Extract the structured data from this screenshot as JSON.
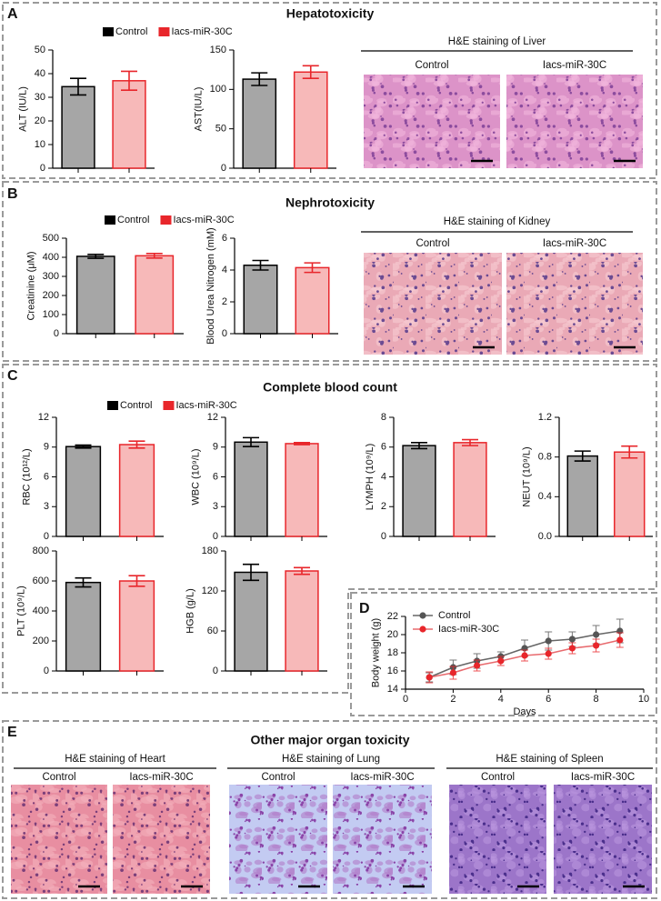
{
  "chart_data": [
    {
      "type": "bar",
      "ylabel": "ALT (IU/L)",
      "categories": [
        null,
        null
      ],
      "values": [
        34.5,
        37
      ],
      "errors": [
        3.5,
        4
      ],
      "colors": [
        "#a6a6a6",
        "#f7b9b9"
      ],
      "edge_colors": [
        "#000000",
        "#e8262b"
      ],
      "ylim": [
        0,
        50
      ],
      "yticks": [
        0,
        10,
        20,
        30,
        40,
        50
      ]
    },
    {
      "type": "bar",
      "ylabel": "AST(IU/L)",
      "categories": [
        null,
        null
      ],
      "values": [
        113,
        122
      ],
      "errors": [
        8,
        8
      ],
      "colors": [
        "#a6a6a6",
        "#f7b9b9"
      ],
      "edge_colors": [
        "#000000",
        "#e8262b"
      ],
      "ylim": [
        0,
        150
      ],
      "yticks": [
        0,
        50,
        100,
        150
      ]
    },
    {
      "type": "bar",
      "ylabel": "Creatinine (μM)",
      "categories": [
        null,
        null
      ],
      "values": [
        405,
        408
      ],
      "errors": [
        10,
        12
      ],
      "colors": [
        "#a6a6a6",
        "#f7b9b9"
      ],
      "edge_colors": [
        "#000000",
        "#e8262b"
      ],
      "ylim": [
        0,
        500
      ],
      "yticks": [
        0,
        100,
        200,
        300,
        400,
        500
      ]
    },
    {
      "type": "bar",
      "ylabel": "Blood Urea Nitrogen (mM)",
      "categories": [
        null,
        null
      ],
      "values": [
        4.3,
        4.15
      ],
      "errors": [
        0.3,
        0.3
      ],
      "colors": [
        "#a6a6a6",
        "#f7b9b9"
      ],
      "edge_colors": [
        "#000000",
        "#e8262b"
      ],
      "ylim": [
        0,
        6
      ],
      "yticks": [
        0,
        2,
        4,
        6
      ]
    },
    {
      "type": "bar",
      "ylabel": "RBC (10¹²/L)",
      "categories": [
        null,
        null
      ],
      "values": [
        9.05,
        9.25
      ],
      "errors": [
        0.15,
        0.35
      ],
      "colors": [
        "#a6a6a6",
        "#f7b9b9"
      ],
      "edge_colors": [
        "#000000",
        "#e8262b"
      ],
      "ylim": [
        0,
        12
      ],
      "yticks": [
        0,
        3,
        6,
        9,
        12
      ]
    },
    {
      "type": "bar",
      "ylabel": "WBC (10⁹/L)",
      "categories": [
        null,
        null
      ],
      "values": [
        9.5,
        9.35
      ],
      "errors": [
        0.45,
        0.1
      ],
      "colors": [
        "#a6a6a6",
        "#f7b9b9"
      ],
      "edge_colors": [
        "#000000",
        "#e8262b"
      ],
      "ylim": [
        0,
        12
      ],
      "yticks": [
        0,
        3,
        6,
        9,
        12
      ]
    },
    {
      "type": "bar",
      "ylabel": "LYMPH (10⁹/L)",
      "categories": [
        null,
        null
      ],
      "values": [
        6.1,
        6.3
      ],
      "errors": [
        0.2,
        0.2
      ],
      "colors": [
        "#a6a6a6",
        "#f7b9b9"
      ],
      "edge_colors": [
        "#000000",
        "#e8262b"
      ],
      "ylim": [
        0,
        8
      ],
      "yticks": [
        0,
        2,
        4,
        6,
        8
      ]
    },
    {
      "type": "bar",
      "ylabel": "NEUT (10⁹/L)",
      "categories": [
        null,
        null
      ],
      "values": [
        0.81,
        0.85
      ],
      "errors": [
        0.05,
        0.06
      ],
      "colors": [
        "#a6a6a6",
        "#f7b9b9"
      ],
      "edge_colors": [
        "#000000",
        "#e8262b"
      ],
      "ylim": [
        0,
        1.2
      ],
      "yticks": [
        {
          "value": 0,
          "label": "0.0"
        },
        0.4,
        0.8,
        1.2
      ]
    },
    {
      "type": "bar",
      "ylabel": "PLT (10⁹/L)",
      "categories": [
        null,
        null
      ],
      "values": [
        590,
        600
      ],
      "errors": [
        30,
        35
      ],
      "colors": [
        "#a6a6a6",
        "#f7b9b9"
      ],
      "edge_colors": [
        "#000000",
        "#e8262b"
      ],
      "ylim": [
        0,
        800
      ],
      "yticks": [
        0,
        200,
        400,
        600,
        800
      ]
    },
    {
      "type": "bar",
      "ylabel": "HGB (g/L)",
      "categories": [
        null,
        null
      ],
      "values": [
        148,
        150
      ],
      "errors": [
        12,
        5
      ],
      "colors": [
        "#a6a6a6",
        "#f7b9b9"
      ],
      "edge_colors": [
        "#000000",
        "#e8262b"
      ],
      "ylim": [
        0,
        180
      ],
      "yticks": [
        0,
        60,
        120,
        180
      ]
    },
    {
      "type": "line",
      "xlabel": "Days",
      "ylabel": "Body weight (g)",
      "x": [
        1,
        2,
        3,
        4,
        5,
        6,
        7,
        8,
        9
      ],
      "series": [
        {
          "name": "Control",
          "color": "#555555",
          "values": [
            15.3,
            16.4,
            17.1,
            17.6,
            18.5,
            19.3,
            19.5,
            20.0,
            20.4
          ],
          "errors": [
            0.5,
            0.8,
            0.8,
            0.5,
            0.9,
            1.0,
            0.8,
            1.0,
            1.3
          ]
        },
        {
          "name": "Iacs-miR-30C",
          "color": "#e8262b",
          "values": [
            15.3,
            15.8,
            16.6,
            17.1,
            17.7,
            17.9,
            18.5,
            18.8,
            19.4
          ],
          "errors": [
            0.6,
            0.7,
            0.6,
            0.5,
            0.6,
            0.6,
            0.6,
            0.7,
            0.8
          ]
        }
      ],
      "xlim": [
        0,
        10
      ],
      "xticks": [
        0,
        2,
        4,
        6,
        8,
        10
      ],
      "ylim": [
        14,
        22
      ],
      "yticks": [
        14,
        16,
        18,
        20,
        22
      ]
    }
  ],
  "figure": {
    "panels": [
      {
        "letter": "A",
        "title": "Hepatotoxicity",
        "legend": [
          {
            "name": "Control",
            "color": "#000000"
          },
          {
            "name": "Iacs-miR-30C",
            "color": "#e8262b"
          }
        ],
        "micrographs": [
          {
            "title": "H&E staining of Liver",
            "labels": [
              "Control",
              "Iacs-miR-30C"
            ]
          }
        ]
      },
      {
        "letter": "B",
        "title": "Nephrotoxicity",
        "legend": [
          {
            "name": "Control",
            "color": "#000000"
          },
          {
            "name": "Iacs-miR-30C",
            "color": "#e8262b"
          }
        ],
        "micrographs": [
          {
            "title": "H&E staining of Kidney",
            "labels": [
              "Control",
              "Iacs-miR-30C"
            ]
          }
        ]
      },
      {
        "letter": "C",
        "title": "Complete blood count",
        "legend": [
          {
            "name": "Control",
            "color": "#000000"
          },
          {
            "name": "Iacs-miR-30C",
            "color": "#e8262b"
          }
        ]
      },
      {
        "letter": "D"
      },
      {
        "letter": "E",
        "title": "Other major organ toxicity",
        "micrographs": [
          {
            "title": "H&E staining of Heart",
            "labels": [
              "Control",
              "Iacs-miR-30C"
            ]
          },
          {
            "title": "H&E staining  of Lung",
            "labels": [
              "Control",
              "Iacs-miR-30C"
            ]
          },
          {
            "title": "H&E staining  of Spleen",
            "labels": [
              "Control",
              "Iacs-miR-30C"
            ]
          }
        ]
      }
    ]
  }
}
